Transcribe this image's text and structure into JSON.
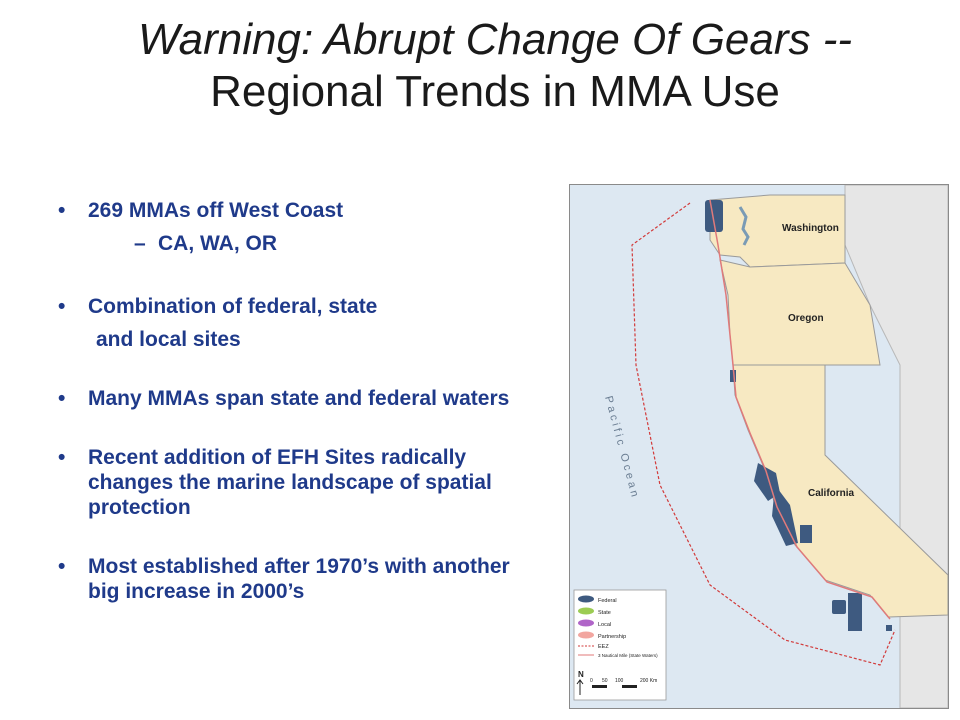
{
  "slide": {
    "title_line1": "Warning: Abrupt Change Of Gears --",
    "title_line2": "Regional Trends in MMA Use"
  },
  "bullets": [
    {
      "text": "269 MMAs off West Coast",
      "sub": "CA, WA, OR"
    },
    {
      "text": "Combination of federal, state",
      "cont": "and local sites"
    },
    {
      "text": "Many MMAs span state and federal waters"
    },
    {
      "text": "Recent addition of EFH Sites radically changes the marine landscape of spatial protection"
    },
    {
      "text": "Most established after 1970’s with another big increase in 2000’s"
    }
  ],
  "map": {
    "state_labels": {
      "washington": "Washington",
      "oregon": "Oregon",
      "california": "California"
    },
    "ocean_label": "Pacific Ocean",
    "legend": {
      "items": [
        {
          "label": "Federal",
          "color": "#3e5a80"
        },
        {
          "label": "State",
          "color": "#9ccc53"
        },
        {
          "label": "Local",
          "color": "#b065c8"
        },
        {
          "label": "Partnership",
          "color": "#f2a6a0"
        },
        {
          "label": "EEZ"
        },
        {
          "label": "3 Nautical Mile (State Waters)"
        }
      ],
      "north": "N",
      "scale_ticks": [
        "0",
        "50",
        "100",
        "200 Km"
      ]
    },
    "colors": {
      "ocean": "#dde8f2",
      "land": "#f7e9c2",
      "neighbor": "#e6e6e6",
      "federal": "#3e5a80",
      "eez": "#d23a3a"
    }
  }
}
